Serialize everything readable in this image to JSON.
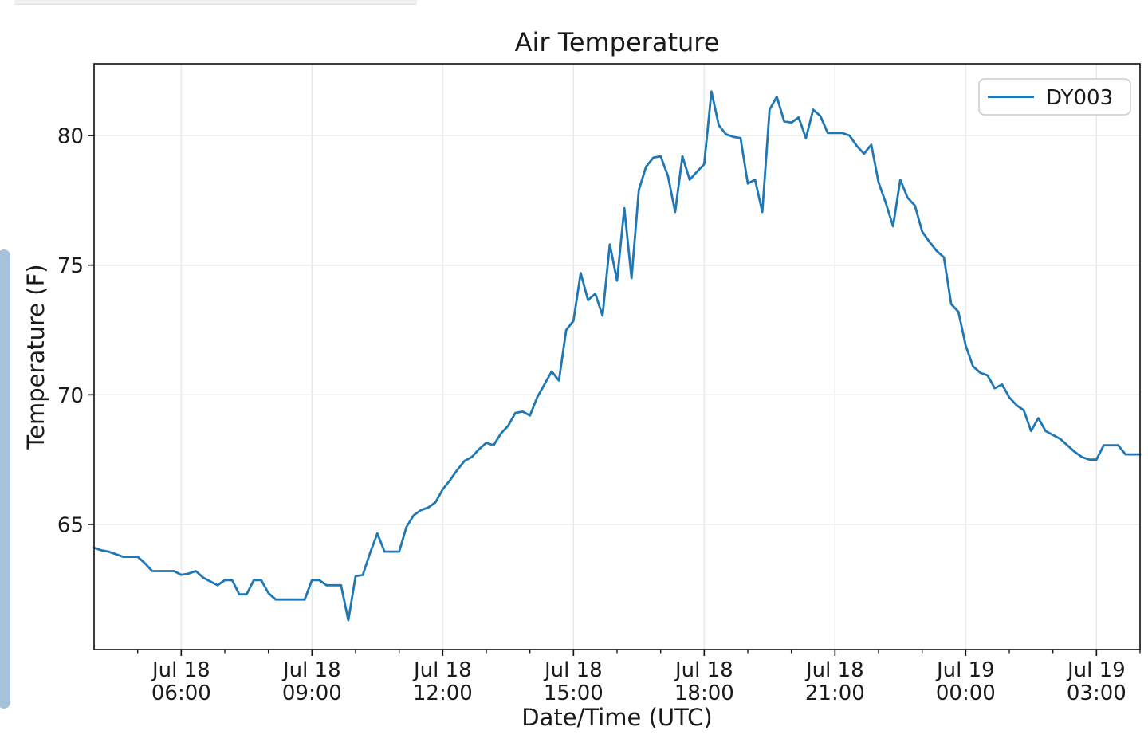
{
  "page": {
    "background": "#ffffff"
  },
  "decor": {
    "top_strip_color": "#efefef",
    "top_strip_border": "#e2e2e2",
    "scrollbar_thumb_color": "#a8c1da"
  },
  "chart_data": {
    "type": "line",
    "title": "Air Temperature",
    "xlabel": "Date/Time (UTC)",
    "ylabel": "Temperature (F)",
    "grid": true,
    "legend": {
      "entries": [
        "DY003"
      ],
      "position": "upper right"
    },
    "x_start": "Jul 18 04:00",
    "x_interval_minutes": 10,
    "xlim_minutes": [
      0,
      1440
    ],
    "ylim": [
      60.17,
      82.77
    ],
    "y_ticks": [
      65,
      70,
      75,
      80
    ],
    "x_minor_interval_minutes": 60,
    "x_ticks": [
      {
        "t": 120,
        "date": "Jul 18",
        "time": "06:00"
      },
      {
        "t": 300,
        "date": "Jul 18",
        "time": "09:00"
      },
      {
        "t": 480,
        "date": "Jul 18",
        "time": "12:00"
      },
      {
        "t": 660,
        "date": "Jul 18",
        "time": "15:00"
      },
      {
        "t": 840,
        "date": "Jul 18",
        "time": "18:00"
      },
      {
        "t": 1020,
        "date": "Jul 18",
        "time": "21:00"
      },
      {
        "t": 1200,
        "date": "Jul 19",
        "time": "00:00"
      },
      {
        "t": 1380,
        "date": "Jul 19",
        "time": "03:00"
      }
    ],
    "colors": {
      "line": "#1f77b4",
      "grid": "#e9e9e9",
      "axis": "#1a1a1a",
      "text": "#1a1a1a",
      "legend_border": "#cccccc"
    },
    "series": [
      {
        "name": "DY003",
        "unit": "F",
        "values": [
          64.1,
          64.0,
          63.95,
          63.85,
          63.75,
          63.75,
          63.75,
          63.5,
          63.2,
          63.2,
          63.2,
          63.2,
          63.05,
          63.1,
          63.2,
          62.95,
          62.8,
          62.65,
          62.85,
          62.85,
          62.3,
          62.3,
          62.85,
          62.85,
          62.35,
          62.1,
          62.1,
          62.1,
          62.1,
          62.1,
          62.85,
          62.85,
          62.65,
          62.65,
          62.65,
          61.3,
          63.0,
          63.05,
          63.9,
          64.65,
          63.95,
          63.95,
          63.95,
          64.9,
          65.35,
          65.55,
          65.65,
          65.85,
          66.35,
          66.7,
          67.1,
          67.45,
          67.6,
          67.9,
          68.15,
          68.05,
          68.5,
          68.8,
          69.3,
          69.35,
          69.2,
          69.9,
          70.4,
          70.9,
          70.55,
          72.5,
          72.85,
          74.7,
          73.65,
          73.9,
          73.05,
          75.8,
          74.4,
          77.2,
          74.5,
          77.9,
          78.8,
          79.15,
          79.2,
          78.45,
          77.05,
          79.2,
          78.3,
          78.6,
          78.9,
          81.7,
          80.4,
          80.05,
          79.95,
          79.9,
          78.15,
          78.3,
          77.05,
          81.0,
          81.5,
          80.55,
          80.5,
          80.7,
          79.9,
          81.0,
          80.75,
          80.1,
          80.1,
          80.1,
          80.0,
          79.6,
          79.3,
          79.65,
          78.2,
          77.4,
          76.5,
          78.3,
          77.6,
          77.3,
          76.3,
          75.9,
          75.55,
          75.3,
          73.5,
          73.2,
          71.9,
          71.1,
          70.85,
          70.75,
          70.25,
          70.4,
          69.9,
          69.6,
          69.4,
          68.6,
          69.1,
          68.6,
          68.45,
          68.3,
          68.05,
          67.8,
          67.6,
          67.5,
          67.5,
          68.05,
          68.05,
          68.05,
          67.7,
          67.7,
          67.7
        ]
      }
    ]
  }
}
